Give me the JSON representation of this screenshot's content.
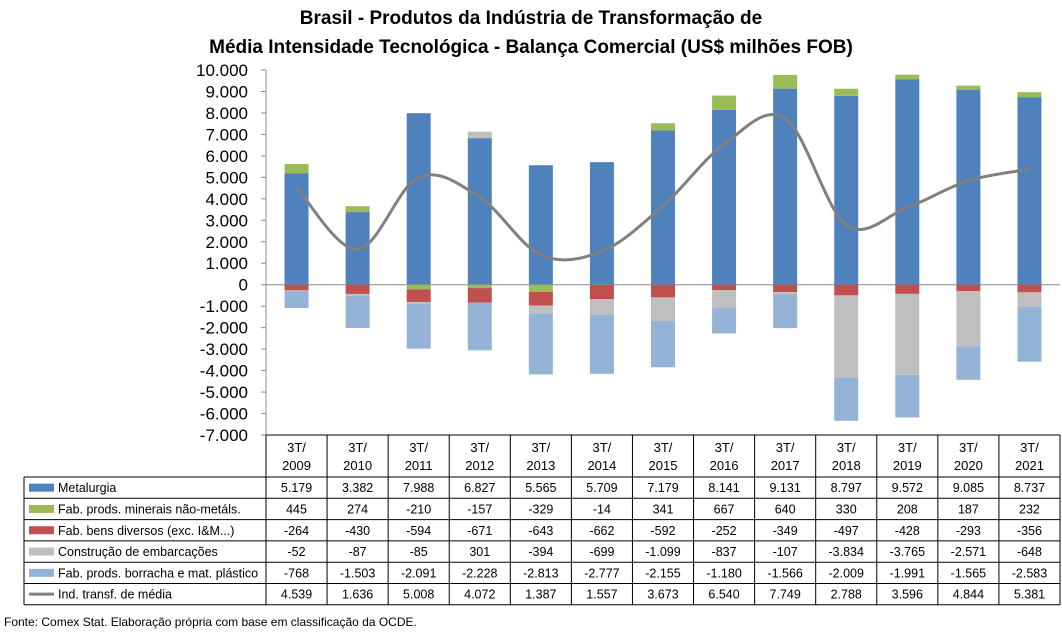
{
  "chart_data": {
    "type": "bar",
    "title_lines": [
      "Brasil - Produtos da Indústria de Transformação de",
      "Média Intensidade Tecnológica - Balança Comercial (US$ milhões FOB)"
    ],
    "y_ticks": [
      "10.000",
      "9.000",
      "8.000",
      "7.000",
      "6.000",
      "5.000",
      "4.000",
      "3.000",
      "2.000",
      "1.000",
      "0",
      "-1.000",
      "-2.000",
      "-3.000",
      "-4.000",
      "-5.000",
      "-6.000",
      "-7.000"
    ],
    "ylim": [
      -7000,
      10000
    ],
    "grid": false,
    "stacked": true,
    "categories": [
      {
        "line1": "3T/",
        "line2": "2009"
      },
      {
        "line1": "3T/",
        "line2": "2010"
      },
      {
        "line1": "3T/",
        "line2": "2011"
      },
      {
        "line1": "3T/",
        "line2": "2012"
      },
      {
        "line1": "3T/",
        "line2": "2013"
      },
      {
        "line1": "3T/",
        "line2": "2014"
      },
      {
        "line1": "3T/",
        "line2": "2015"
      },
      {
        "line1": "3T/",
        "line2": "2016"
      },
      {
        "line1": "3T/",
        "line2": "2017"
      },
      {
        "line1": "3T/",
        "line2": "2018"
      },
      {
        "line1": "3T/",
        "line2": "2019"
      },
      {
        "line1": "3T/",
        "line2": "2020"
      },
      {
        "line1": "3T/",
        "line2": "2021"
      }
    ],
    "series": [
      {
        "name": "Metalurgia",
        "kind": "bar",
        "color": "#4f81bd",
        "values": [
          5179,
          3382,
          7988,
          6827,
          5565,
          5709,
          7179,
          8141,
          9131,
          8797,
          9572,
          9085,
          8737
        ],
        "labels": [
          "5.179",
          "3.382",
          "7.988",
          "6.827",
          "5.565",
          "5.709",
          "7.179",
          "8.141",
          "9.131",
          "8.797",
          "9.572",
          "9.085",
          "8.737"
        ]
      },
      {
        "name": "Fab. prods. minerais não-metáls.",
        "kind": "bar",
        "color": "#9bbb59",
        "values": [
          445,
          274,
          -210,
          -157,
          -329,
          -14,
          341,
          667,
          640,
          330,
          208,
          187,
          232
        ],
        "labels": [
          "445",
          "274",
          "-210",
          "-157",
          "-329",
          "-14",
          "341",
          "667",
          "640",
          "330",
          "208",
          "187",
          "232"
        ]
      },
      {
        "name": "Fab. bens diversos (exc. I&M...)",
        "kind": "bar",
        "color": "#c0504d",
        "values": [
          -264,
          -430,
          -594,
          -671,
          -643,
          -662,
          -592,
          -252,
          -349,
          -497,
          -428,
          -293,
          -356
        ],
        "labels": [
          "-264",
          "-430",
          "-594",
          "-671",
          "-643",
          "-662",
          "-592",
          "-252",
          "-349",
          "-497",
          "-428",
          "-293",
          "-356"
        ]
      },
      {
        "name": "Construção de embarcações",
        "kind": "bar",
        "color": "#bfbfbf",
        "values": [
          -52,
          -87,
          -85,
          301,
          -394,
          -699,
          -1099,
          -837,
          -107,
          -3834,
          -3765,
          -2571,
          -648
        ],
        "labels": [
          "-52",
          "-87",
          "-85",
          "301",
          "-394",
          "-699",
          "-1.099",
          "-837",
          "-107",
          "-3.834",
          "-3.765",
          "-2.571",
          "-648"
        ]
      },
      {
        "name": "Fab. prods. borracha e mat. plástico",
        "kind": "bar",
        "color": "#95b3d7",
        "values": [
          -768,
          -1503,
          -2091,
          -2228,
          -2813,
          -2777,
          -2155,
          -1180,
          -1566,
          -2009,
          -1991,
          -1565,
          -2583
        ],
        "labels": [
          "-768",
          "-1.503",
          "-2.091",
          "-2.228",
          "-2.813",
          "-2.777",
          "-2.155",
          "-1.180",
          "-1.566",
          "-2.009",
          "-1.991",
          "-1.565",
          "-2.583"
        ]
      },
      {
        "name": "Ind. transf. de média",
        "kind": "line",
        "color": "#808080",
        "values": [
          4539,
          1636,
          5008,
          4072,
          1387,
          1557,
          3673,
          6540,
          7749,
          2788,
          3596,
          4844,
          5381
        ],
        "labels": [
          "4.539",
          "1.636",
          "5.008",
          "4.072",
          "1.387",
          "1.557",
          "3.673",
          "6.540",
          "7.749",
          "2.788",
          "3.596",
          "4.844",
          "5.381"
        ]
      }
    ]
  },
  "source": "Fonte: Comex Stat. Elaboração própria com base em classificação da OCDE."
}
